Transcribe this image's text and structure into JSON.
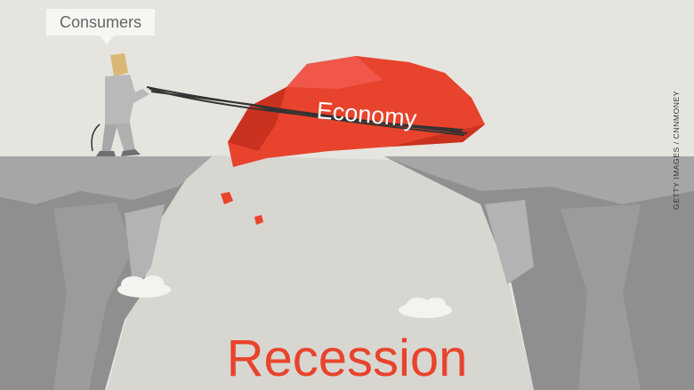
{
  "scene": {
    "speech_bubble": "Consumers",
    "rock_label": "Economy",
    "headline": "Recession",
    "photo_credit": "GETTY IMAGES / CNNMONEY"
  },
  "colors": {
    "background": "#e6e4df",
    "cliff_dark": "#8f8f8f",
    "cliff_light": "#a9a9a9",
    "rock": "#e8432c",
    "headline": "#e8432c",
    "figure": "#b9b9b9",
    "hair": "#d9b777",
    "rope": "#333333"
  }
}
